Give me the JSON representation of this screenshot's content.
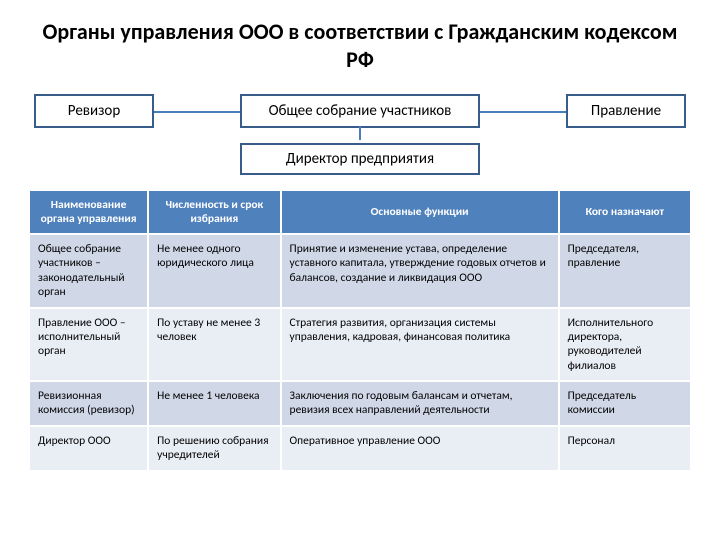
{
  "title": "Органы управления ООО  в соответствии с Гражданским кодексом РФ",
  "diagram": {
    "box_left": "Ревизор",
    "box_center": "Общее собрание участников",
    "box_right": "Правление",
    "box_director": "Директор предприятия",
    "border_color": "#385d8a",
    "line_color": "#4a7ebb"
  },
  "table": {
    "header_bg": "#4f81bd",
    "header_fg": "#ffffff",
    "row_light_bg": "#e9edf4",
    "row_dark_bg": "#d0d8e8",
    "columns": [
      "Наименование органа управления",
      "Численность и срок избрания",
      "Основные функции",
      "Кого назначают"
    ],
    "rows": [
      {
        "c1": "Общее собрание участников – законодательный орган",
        "c2": "Не менее одного юридического лица",
        "c3": "Принятие и изменение устава, определение уставного капитала, утверждение годовых отчетов и балансов, создание и ликвидация ООО",
        "c4": "Председателя, правление"
      },
      {
        "c1": "Правление ООО – исполнительный орган",
        "c2": "По уставу не менее 3 человек",
        "c3": "Стратегия развития, организация системы управления, кадровая, финансовая политика",
        "c4": "Исполнительного директора, руководителей филиалов"
      },
      {
        "c1": "Ревизионная комиссия (ревизор)",
        "c2": "Не менее 1 человека",
        "c3": "Заключения по годовым балансам и отчетам, ревизия всех направлений деятельности",
        "c4": "Председатель комиссии"
      },
      {
        "c1": "Директор ООО",
        "c2": "По решению собрания учредителей",
        "c3": "Оперативное управление ООО",
        "c4": "Персонал"
      }
    ]
  }
}
